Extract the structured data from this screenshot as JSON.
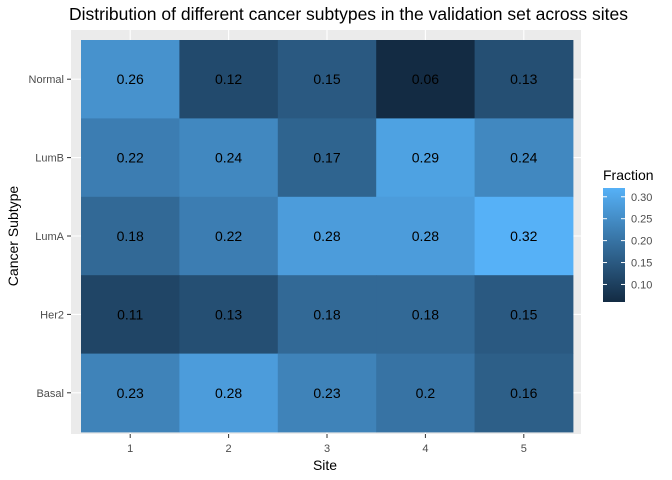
{
  "chart_data": {
    "type": "heatmap",
    "title": "Distribution of different cancer subtypes in the validation set across sites",
    "xlabel": "Site",
    "ylabel": "Cancer Subtype",
    "x_categories": [
      "1",
      "2",
      "3",
      "4",
      "5"
    ],
    "y_categories": [
      "Normal",
      "LumB",
      "LumA",
      "Her2",
      "Basal"
    ],
    "values": [
      [
        "0.26",
        "0.12",
        "0.15",
        "0.06",
        "0.13"
      ],
      [
        "0.22",
        "0.24",
        "0.17",
        "0.29",
        "0.24"
      ],
      [
        "0.18",
        "0.22",
        "0.28",
        "0.28",
        "0.32"
      ],
      [
        "0.11",
        "0.13",
        "0.18",
        "0.18",
        "0.15"
      ],
      [
        "0.23",
        "0.28",
        "0.23",
        "0.2",
        "0.16"
      ]
    ],
    "legend": {
      "title": "Fraction",
      "placement": "right",
      "ticks": [
        "0.30",
        "0.25",
        "0.20",
        "0.15",
        "0.10"
      ],
      "range": [
        0.06,
        0.32
      ],
      "low_color": "#132b43",
      "high_color": "#56b1f7"
    },
    "panel_background": "#ebebeb",
    "grid": true
  }
}
